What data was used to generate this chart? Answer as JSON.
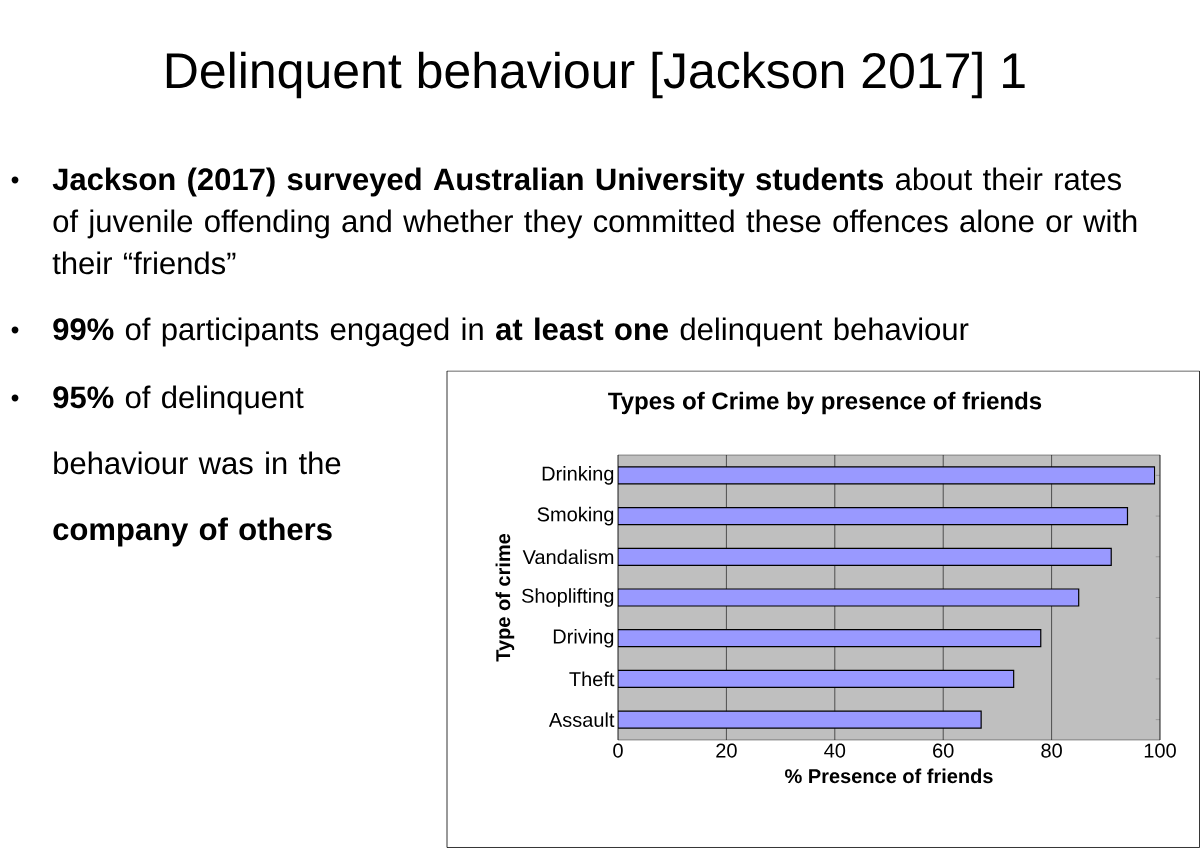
{
  "chart_data": {
    "type": "bar",
    "orientation": "horizontal",
    "title": "Delinquent behaviour [Jackson 2017] 1",
    "subtitle": "Types of Crime by presence of friends",
    "annotations": [
      "**Jackson (2017) surveyed Australian University students** about their rates of juvenile offending and whether they committed these offences alone or with their “friends”",
      "**99%** of participants engaged in **at least one** delinquent behaviour",
      "**95%** of delinquent behaviour was in the **company of others**"
    ],
    "xlabel": "% Presence of friends",
    "ylabel": "Type of crime",
    "categories": [
      "Drinking",
      "Smoking",
      "Vandalism",
      "Shoplifting",
      "Driving",
      "Theft",
      "Assault"
    ],
    "values": [
      99,
      94,
      91,
      85,
      78,
      73,
      67
    ],
    "color": "#9999ff",
    "xlim": [
      0,
      100
    ],
    "xticks": [
      0,
      20,
      40,
      60,
      80,
      100
    ],
    "grid": "x"
  }
}
